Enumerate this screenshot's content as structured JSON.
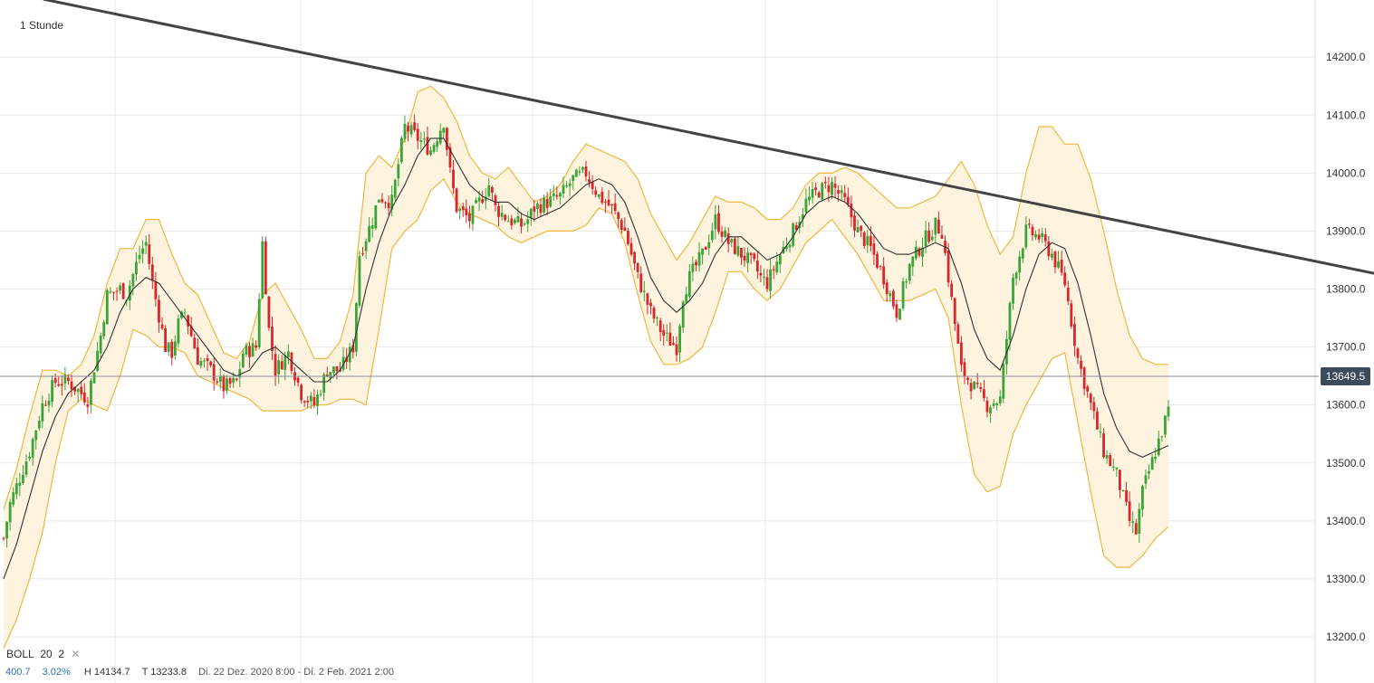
{
  "interval_label": "1 Stunde",
  "indicator": {
    "name": "BOLL",
    "period": "20",
    "stddev": "2",
    "close_symbol": "✕"
  },
  "footer": {
    "range": "400.7",
    "change_pct": "3.02%",
    "high": "H 14134.7",
    "low": "T 13233.8",
    "dates": "Di. 22 Dez. 2020 8:00 - Di. 2 Feb. 2021 2:00"
  },
  "current_price": "13649.5",
  "colors": {
    "up": "#3aa536",
    "down": "#d9262b",
    "band": "#f2b63c",
    "band_fill": "#fdf3df",
    "middle_band": "#333333",
    "trendline": "#444444",
    "grid": "#e8e8e8",
    "badge": "#3c4a5c"
  },
  "chart_data": {
    "type": "candlestick",
    "title": "",
    "interval": "1 Stunde",
    "y_axis": {
      "side": "right",
      "ticks": [
        13200.0,
        13300.0,
        13400.0,
        13500.0,
        13600.0,
        13700.0,
        13800.0,
        13900.0,
        14000.0,
        14100.0,
        14200.0
      ],
      "tick_labels": [
        "13200.0",
        "13300.0",
        "13400.0",
        "13500.0",
        "13600.0",
        "13700.0",
        "13800.0",
        "13900.0",
        "14000.0",
        "14100.0",
        "14200.0"
      ],
      "range": [
        13120,
        14300
      ]
    },
    "x_axis": {
      "range_text": "Di. 22 Dez. 2020 8:00 - Di. 2 Feb. 2021 2:00",
      "start": "2020-12-22 08:00",
      "end": "2021-02-02 02:00"
    },
    "grid": true,
    "current_price": 13649.5,
    "high": 14134.7,
    "low": 13233.8,
    "indicator": {
      "name": "Bollinger Bands",
      "period": 20,
      "stddev": 2
    },
    "trendline": {
      "from": {
        "x": "start",
        "y": 14300
      },
      "to": {
        "x": "end",
        "y": 13827
      }
    },
    "close_path": [
      [
        0,
        13370
      ],
      [
        0.5,
        13430
      ],
      [
        2,
        13520
      ],
      [
        3,
        13600
      ],
      [
        4,
        13640
      ],
      [
        5,
        13640
      ],
      [
        6.5,
        13610
      ],
      [
        7.5,
        13720
      ],
      [
        8,
        13790
      ],
      [
        9,
        13800
      ],
      [
        9.5,
        13790
      ],
      [
        10.5,
        13860
      ],
      [
        11,
        13880
      ],
      [
        11.5,
        13810
      ],
      [
        12.5,
        13700
      ],
      [
        13,
        13690
      ],
      [
        13.5,
        13740
      ],
      [
        14,
        13760
      ],
      [
        15,
        13680
      ],
      [
        16,
        13660
      ],
      [
        17,
        13630
      ],
      [
        18,
        13640
      ],
      [
        18.5,
        13690
      ],
      [
        19.5,
        13700
      ],
      [
        20,
        13880
      ],
      [
        20.5,
        13730
      ],
      [
        21,
        13660
      ],
      [
        22,
        13690
      ],
      [
        23,
        13620
      ],
      [
        24,
        13600
      ],
      [
        25,
        13660
      ],
      [
        26,
        13660
      ],
      [
        27,
        13700
      ],
      [
        27.5,
        13860
      ],
      [
        28.5,
        13920
      ],
      [
        29,
        13960
      ],
      [
        30,
        13950
      ],
      [
        31,
        14080
      ],
      [
        32,
        14060
      ],
      [
        33,
        14040
      ],
      [
        34,
        14090
      ],
      [
        34.5,
        14000
      ],
      [
        35,
        13940
      ],
      [
        36,
        13920
      ],
      [
        37,
        13960
      ],
      [
        37.5,
        13980
      ],
      [
        38,
        13940
      ],
      [
        39,
        13920
      ],
      [
        40,
        13910
      ],
      [
        40.5,
        13920
      ],
      [
        41,
        13940
      ],
      [
        42,
        13950
      ],
      [
        43,
        13960
      ],
      [
        44,
        13990
      ],
      [
        45,
        14000
      ],
      [
        46,
        13960
      ],
      [
        47,
        13940
      ],
      [
        48,
        13900
      ],
      [
        49,
        13820
      ],
      [
        50,
        13760
      ],
      [
        51,
        13720
      ],
      [
        52,
        13700
      ],
      [
        52.5,
        13790
      ],
      [
        53,
        13820
      ],
      [
        54,
        13860
      ],
      [
        55,
        13920
      ],
      [
        56,
        13880
      ],
      [
        57,
        13860
      ],
      [
        58,
        13840
      ],
      [
        58.5,
        13820
      ],
      [
        59,
        13810
      ],
      [
        60,
        13860
      ],
      [
        61,
        13900
      ],
      [
        62,
        13950
      ],
      [
        63,
        13970
      ],
      [
        64,
        13980
      ],
      [
        65,
        13950
      ],
      [
        66,
        13900
      ],
      [
        67,
        13870
      ],
      [
        68,
        13820
      ],
      [
        69,
        13760
      ],
      [
        70,
        13840
      ],
      [
        71,
        13880
      ],
      [
        72,
        13910
      ],
      [
        72.5,
        13900
      ],
      [
        73,
        13820
      ],
      [
        74,
        13660
      ],
      [
        75,
        13630
      ],
      [
        76,
        13600
      ],
      [
        77,
        13610
      ],
      [
        78,
        13820
      ],
      [
        79,
        13900
      ],
      [
        80,
        13890
      ],
      [
        81,
        13860
      ],
      [
        82,
        13810
      ],
      [
        83,
        13680
      ],
      [
        84,
        13600
      ],
      [
        85,
        13520
      ],
      [
        86,
        13480
      ],
      [
        87,
        13400
      ],
      [
        87.5,
        13380
      ],
      [
        88,
        13450
      ],
      [
        89,
        13520
      ],
      [
        90,
        13590
      ],
      [
        91,
        13649.5
      ]
    ],
    "middle_band_path": [
      [
        0,
        13300
      ],
      [
        1,
        13360
      ],
      [
        2,
        13440
      ],
      [
        3,
        13520
      ],
      [
        4,
        13580
      ],
      [
        5,
        13620
      ],
      [
        6,
        13640
      ],
      [
        7,
        13660
      ],
      [
        8,
        13700
      ],
      [
        9,
        13760
      ],
      [
        10,
        13800
      ],
      [
        11,
        13820
      ],
      [
        12,
        13810
      ],
      [
        13,
        13780
      ],
      [
        14,
        13750
      ],
      [
        15,
        13720
      ],
      [
        16,
        13690
      ],
      [
        17,
        13660
      ],
      [
        18,
        13650
      ],
      [
        19,
        13660
      ],
      [
        20,
        13690
      ],
      [
        21,
        13700
      ],
      [
        22,
        13680
      ],
      [
        23,
        13660
      ],
      [
        24,
        13640
      ],
      [
        25,
        13640
      ],
      [
        26,
        13660
      ],
      [
        27,
        13700
      ],
      [
        28,
        13800
      ],
      [
        29,
        13880
      ],
      [
        30,
        13940
      ],
      [
        31,
        13980
      ],
      [
        32,
        14030
      ],
      [
        33,
        14060
      ],
      [
        34,
        14060
      ],
      [
        35,
        14020
      ],
      [
        36,
        13980
      ],
      [
        37,
        13960
      ],
      [
        38,
        13950
      ],
      [
        39,
        13950
      ],
      [
        40,
        13930
      ],
      [
        41,
        13920
      ],
      [
        42,
        13930
      ],
      [
        43,
        13940
      ],
      [
        44,
        13960
      ],
      [
        45,
        13980
      ],
      [
        46,
        13990
      ],
      [
        47,
        13980
      ],
      [
        48,
        13950
      ],
      [
        49,
        13890
      ],
      [
        50,
        13820
      ],
      [
        51,
        13780
      ],
      [
        52,
        13760
      ],
      [
        53,
        13780
      ],
      [
        54,
        13810
      ],
      [
        55,
        13860
      ],
      [
        56,
        13890
      ],
      [
        57,
        13890
      ],
      [
        58,
        13870
      ],
      [
        59,
        13850
      ],
      [
        60,
        13860
      ],
      [
        61,
        13890
      ],
      [
        62,
        13930
      ],
      [
        63,
        13950
      ],
      [
        64,
        13960
      ],
      [
        65,
        13950
      ],
      [
        66,
        13930
      ],
      [
        67,
        13900
      ],
      [
        68,
        13870
      ],
      [
        69,
        13860
      ],
      [
        70,
        13860
      ],
      [
        71,
        13870
      ],
      [
        72,
        13880
      ],
      [
        73,
        13870
      ],
      [
        74,
        13810
      ],
      [
        75,
        13730
      ],
      [
        76,
        13680
      ],
      [
        77,
        13660
      ],
      [
        78,
        13720
      ],
      [
        79,
        13800
      ],
      [
        80,
        13860
      ],
      [
        81,
        13880
      ],
      [
        82,
        13870
      ],
      [
        83,
        13810
      ],
      [
        84,
        13720
      ],
      [
        85,
        13620
      ],
      [
        86,
        13560
      ],
      [
        87,
        13520
      ],
      [
        88,
        13510
      ],
      [
        89,
        13520
      ],
      [
        90,
        13530
      ]
    ],
    "band_halfwidth_path": [
      [
        0,
        120
      ],
      [
        2,
        140
      ],
      [
        3,
        140
      ],
      [
        4,
        80
      ],
      [
        5,
        30
      ],
      [
        6,
        30
      ],
      [
        7,
        60
      ],
      [
        8,
        110
      ],
      [
        9,
        110
      ],
      [
        10,
        70
      ],
      [
        11,
        100
      ],
      [
        12,
        110
      ],
      [
        13,
        80
      ],
      [
        14,
        60
      ],
      [
        15,
        70
      ],
      [
        16,
        50
      ],
      [
        17,
        30
      ],
      [
        18,
        30
      ],
      [
        19,
        50
      ],
      [
        20,
        100
      ],
      [
        21,
        110
      ],
      [
        22,
        90
      ],
      [
        23,
        70
      ],
      [
        24,
        40
      ],
      [
        25,
        40
      ],
      [
        26,
        50
      ],
      [
        27,
        90
      ],
      [
        28,
        200
      ],
      [
        29,
        150
      ],
      [
        30,
        70
      ],
      [
        31,
        80
      ],
      [
        32,
        110
      ],
      [
        33,
        90
      ],
      [
        34,
        70
      ],
      [
        35,
        70
      ],
      [
        36,
        50
      ],
      [
        37,
        40
      ],
      [
        38,
        40
      ],
      [
        39,
        60
      ],
      [
        40,
        50
      ],
      [
        41,
        30
      ],
      [
        42,
        30
      ],
      [
        43,
        40
      ],
      [
        44,
        60
      ],
      [
        45,
        70
      ],
      [
        46,
        50
      ],
      [
        47,
        50
      ],
      [
        48,
        70
      ],
      [
        49,
        100
      ],
      [
        50,
        110
      ],
      [
        51,
        110
      ],
      [
        52,
        90
      ],
      [
        53,
        100
      ],
      [
        54,
        110
      ],
      [
        55,
        100
      ],
      [
        56,
        60
      ],
      [
        57,
        60
      ],
      [
        58,
        70
      ],
      [
        59,
        70
      ],
      [
        60,
        60
      ],
      [
        61,
        50
      ],
      [
        62,
        50
      ],
      [
        63,
        50
      ],
      [
        64,
        40
      ],
      [
        65,
        60
      ],
      [
        66,
        70
      ],
      [
        67,
        80
      ],
      [
        68,
        90
      ],
      [
        69,
        80
      ],
      [
        70,
        80
      ],
      [
        71,
        80
      ],
      [
        72,
        80
      ],
      [
        73,
        120
      ],
      [
        74,
        210
      ],
      [
        75,
        250
      ],
      [
        76,
        230
      ],
      [
        77,
        200
      ],
      [
        78,
        170
      ],
      [
        79,
        200
      ],
      [
        80,
        220
      ],
      [
        81,
        200
      ],
      [
        82,
        180
      ],
      [
        83,
        240
      ],
      [
        84,
        270
      ],
      [
        85,
        280
      ],
      [
        86,
        240
      ],
      [
        87,
        200
      ],
      [
        88,
        170
      ],
      [
        89,
        150
      ],
      [
        90,
        140
      ]
    ]
  }
}
